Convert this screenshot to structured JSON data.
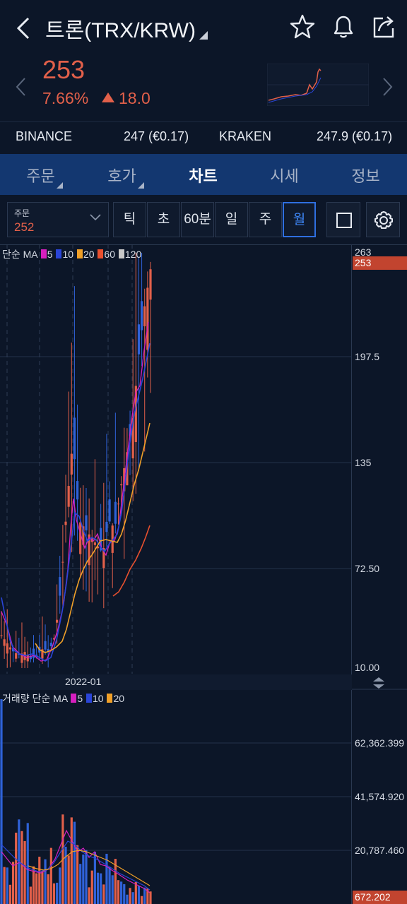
{
  "header": {
    "title": "트론(TRX/KRW)",
    "icons": [
      "back-icon",
      "star-icon",
      "bell-icon",
      "share-icon"
    ]
  },
  "price": {
    "current": "253",
    "change_percent": "7.66%",
    "change_value": "18.0",
    "color": "#e2604a"
  },
  "exchanges": [
    {
      "name": "BINANCE",
      "value": "247 (€0.17)"
    },
    {
      "name": "KRAKEN",
      "value": "247.9 (€0.17)"
    }
  ],
  "tabs": [
    {
      "label": "주문"
    },
    {
      "label": "호가"
    },
    {
      "label": "차트"
    },
    {
      "label": "시세"
    },
    {
      "label": "정보"
    }
  ],
  "controls": {
    "order_label": "주문",
    "order_value": "252",
    "periods": [
      "틱",
      "초",
      "60분",
      "일",
      "주",
      "월"
    ],
    "active_period": "월"
  },
  "chart": {
    "ma_legend_prefix": "단순 MA",
    "ma_items": [
      {
        "label": "5",
        "color": "#d61fbf"
      },
      {
        "label": "10",
        "color": "#2a45d8"
      },
      {
        "label": "20",
        "color": "#f0a028"
      },
      {
        "label": "60",
        "color": "#e8502f"
      },
      {
        "label": "120",
        "color": "#c8c8c8"
      }
    ],
    "price_axis": [
      "263",
      "197.5",
      "135",
      "72.50",
      "10.00"
    ],
    "price_tag": "253",
    "date_label": "2022-01",
    "volume_legend_prefix": "거래량 단순 MA",
    "volume_ma_items": [
      {
        "label": "5",
        "color": "#d61fbf"
      },
      {
        "label": "10",
        "color": "#2a45d8"
      },
      {
        "label": "20",
        "color": "#f0a028"
      }
    ],
    "volume_axis": [
      "62,362.399",
      "41,574.920",
      "20,787.460"
    ],
    "volume_tag": "672.202"
  },
  "chart_data": {
    "type": "candlestick",
    "ylim": [
      10,
      263
    ],
    "x_label": "2022-01",
    "close_trend": [
      30,
      25,
      20,
      18,
      20,
      15,
      18,
      22,
      20,
      30,
      60,
      110,
      150,
      100,
      95,
      90,
      85,
      80,
      100,
      95,
      120,
      140,
      160,
      200,
      230,
      253
    ],
    "volume_ylim": [
      0,
      70000
    ]
  }
}
